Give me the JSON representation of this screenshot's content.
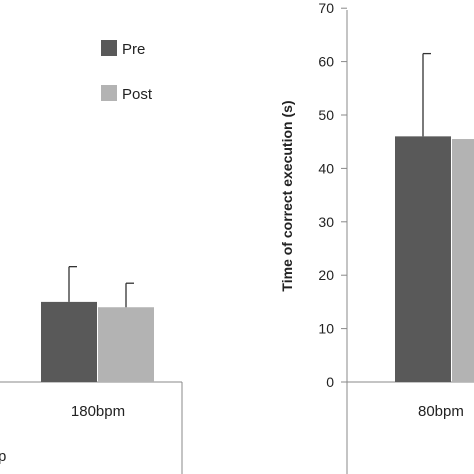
{
  "chart_data": [
    {
      "type": "bar",
      "categories": [
        "180bpm"
      ],
      "series": [
        {
          "name": "Pre",
          "values": [
            15
          ],
          "error": [
            6.6
          ]
        },
        {
          "name": "Post",
          "values": [
            14
          ],
          "error": [
            4.5
          ]
        }
      ],
      "legend": {
        "placement": "top-right",
        "entries": [
          "Pre",
          "Post"
        ]
      },
      "partial_label": "p",
      "grid": false
    },
    {
      "type": "bar",
      "categories": [
        "80bpm"
      ],
      "series": [
        {
          "name": "Pre",
          "values": [
            46
          ],
          "error": [
            15.5
          ]
        },
        {
          "name": "Post",
          "values": [
            45.5
          ],
          "error": [
            0
          ]
        }
      ],
      "ylabel": "Time of correct execution (s)",
      "ylim": [
        0,
        70
      ],
      "yticks": [
        0,
        10,
        20,
        30,
        40,
        50,
        60,
        70
      ],
      "grid": false
    }
  ],
  "colors": {
    "pre": "#595959",
    "post": "#b3b3b3",
    "axis": "#888888",
    "error_bar": "#333333"
  }
}
